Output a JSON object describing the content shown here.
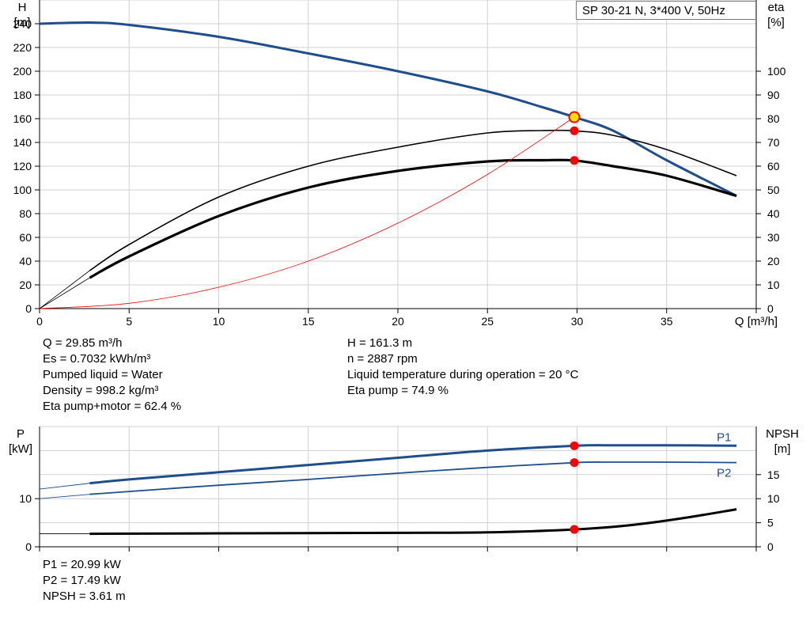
{
  "model_label": "SP 30-21 N, 3*400 V, 50Hz",
  "colors": {
    "blue": "#1f4e8c",
    "red": "#ff0000",
    "black": "#000000",
    "grid": "#d0d0d0",
    "marker_yellow": "#ffe000"
  },
  "chart_data": [
    {
      "type": "line",
      "title": "",
      "xlabel": "Q [m³/h]",
      "ylabel_left": "H\n[m]",
      "ylabel_right": "eta\n[%]",
      "xlim": [
        0,
        40
      ],
      "ylim_left": [
        0,
        260
      ],
      "ylim_right": [
        0,
        130
      ],
      "x_ticks": [
        "0",
        "5",
        "10",
        "15",
        "20",
        "25",
        "30",
        "35"
      ],
      "y_ticks_left": [
        "0",
        "20",
        "40",
        "60",
        "80",
        "100",
        "120",
        "140",
        "160",
        "180",
        "200",
        "220",
        "240"
      ],
      "y_ticks_right": [
        "0",
        "10",
        "20",
        "30",
        "40",
        "50",
        "60",
        "70",
        "80",
        "90",
        "100"
      ],
      "grid": true,
      "series": [
        {
          "key": "H",
          "axis": "left",
          "color": "#1f4e8c",
          "x": [
            0,
            2.8,
            5,
            10,
            15,
            20,
            25,
            28,
            29.85,
            32,
            35,
            38.9
          ],
          "y": [
            240,
            241,
            239,
            229,
            215,
            200,
            183,
            170,
            161.3,
            150,
            125,
            95
          ]
        },
        {
          "key": "eta_pump",
          "axis": "right",
          "color": "#000000",
          "x": [
            2.8,
            5,
            10,
            15,
            20,
            25,
            28,
            29.85,
            32,
            35,
            38.9
          ],
          "y": [
            16,
            27,
            47,
            60,
            68,
            74,
            75,
            74.9,
            73,
            67,
            56
          ]
        },
        {
          "key": "eta_total",
          "axis": "right",
          "color": "#000000",
          "x": [
            2.8,
            5,
            10,
            15,
            20,
            25,
            28,
            29.85,
            32,
            35,
            38.9
          ],
          "y": [
            13,
            22,
            39,
            51,
            58,
            62,
            62.5,
            62.4,
            60,
            56,
            47.5
          ]
        },
        {
          "key": "system_curve",
          "axis": "left",
          "color": "#ff0000",
          "x": [
            0,
            5,
            10,
            15,
            20,
            25,
            29.85
          ],
          "y": [
            0,
            4.5,
            18,
            40,
            72,
            113,
            161.3
          ]
        }
      ],
      "operating_point": {
        "Q": 29.85,
        "H": 161.3,
        "eta_pump": 74.9,
        "eta_total": 62.4
      }
    },
    {
      "type": "line",
      "title": "",
      "ylabel_left": "P\n[kW]",
      "ylabel_right": "NPSH\n[m]",
      "xlim": [
        0,
        40
      ],
      "ylim_left": [
        0,
        25
      ],
      "ylim_right": [
        0,
        25
      ],
      "y_ticks_left": [
        "0",
        "10"
      ],
      "y_ticks_right": [
        "0",
        "5",
        "10",
        "15"
      ],
      "grid": true,
      "series": [
        {
          "name": "P1",
          "axis": "left",
          "color": "#1f4e8c",
          "x": [
            0,
            2.8,
            5,
            10,
            15,
            20,
            25,
            29.85,
            32,
            35,
            38.9
          ],
          "y": [
            12,
            13.2,
            14,
            15.5,
            17,
            18.5,
            20,
            20.99,
            21.1,
            21.1,
            21
          ]
        },
        {
          "name": "P2",
          "axis": "left",
          "color": "#1f4e8c",
          "x": [
            0,
            2.8,
            5,
            10,
            15,
            20,
            25,
            29.85,
            32,
            35,
            38.9
          ],
          "y": [
            10,
            10.9,
            11.5,
            12.8,
            14,
            15.3,
            16.5,
            17.49,
            17.6,
            17.6,
            17.5
          ]
        },
        {
          "key": "NPSH",
          "axis": "right",
          "color": "#000000",
          "x": [
            0,
            2.8,
            10,
            20,
            25,
            29.85,
            33,
            36,
            38.9
          ],
          "y": [
            2.7,
            2.7,
            2.8,
            2.9,
            3.0,
            3.61,
            4.5,
            6,
            7.8
          ]
        }
      ],
      "operating_point": {
        "Q": 29.85,
        "P1": 20.99,
        "P2": 17.49,
        "NPSH": 3.61
      }
    }
  ],
  "info_left": [
    "Q = 29.85 m³/h",
    "Es = 0.7032 kWh/m³",
    "Pumped liquid = Water",
    "Density = 998.2 kg/m³",
    "Eta pump+motor = 62.4 %"
  ],
  "info_right": [
    "H = 161.3 m",
    "n = 2887 rpm",
    "Liquid temperature during operation = 20 °C",
    "Eta pump = 74.9 %"
  ],
  "info_bottom": [
    "P1 = 20.99 kW",
    "P2 = 17.49 kW",
    "NPSH = 3.61 m"
  ]
}
